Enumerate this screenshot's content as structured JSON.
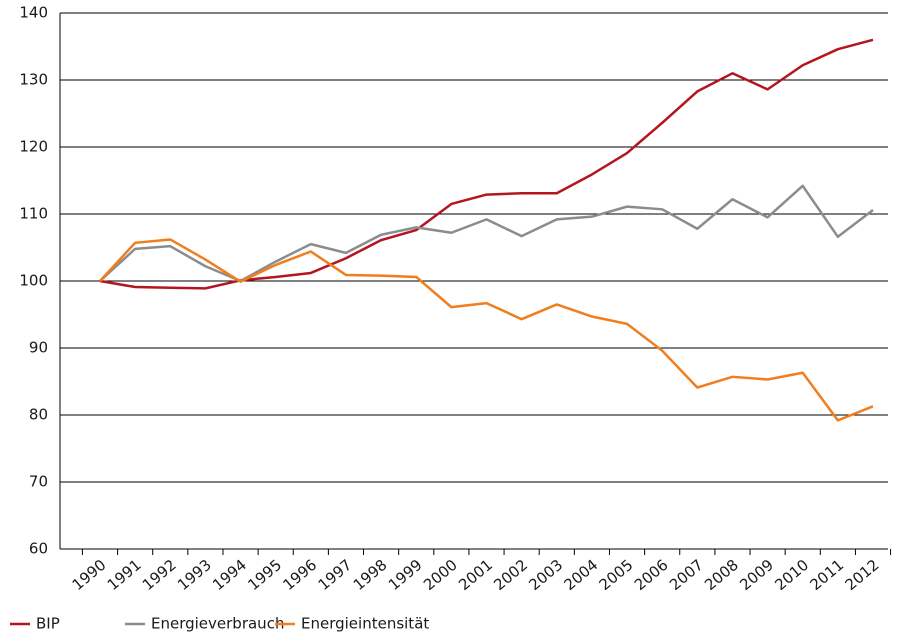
{
  "chart_data": {
    "type": "line",
    "categories": [
      "1990",
      "1991",
      "1992",
      "1993",
      "1994",
      "1995",
      "1996",
      "1997",
      "1998",
      "1999",
      "2000",
      "2001",
      "2002",
      "2003",
      "2004",
      "2005",
      "2006",
      "2007",
      "2008",
      "2009",
      "2010",
      "2011",
      "2012"
    ],
    "series": [
      {
        "name": "BIP",
        "color": "#b3161f",
        "values": [
          100,
          99.1,
          99.0,
          98.9,
          100.1,
          100.6,
          101.2,
          103.4,
          106.1,
          107.6,
          111.5,
          112.9,
          113.1,
          113.1,
          115.9,
          119.1,
          123.6,
          128.3,
          131.0,
          128.6,
          132.2,
          134.6,
          136.0
        ]
      },
      {
        "name": "Energieverbrauch",
        "color": "#8c8c8c",
        "values": [
          100,
          104.8,
          105.2,
          102.2,
          100.0,
          102.9,
          105.5,
          104.2,
          106.9,
          108.0,
          107.2,
          109.2,
          106.7,
          109.2,
          109.6,
          111.1,
          110.7,
          107.8,
          112.2,
          109.5,
          114.2,
          106.6,
          110.6
        ]
      },
      {
        "name": "Energieintensität",
        "color": "#f07d1e",
        "values": [
          100,
          105.7,
          106.2,
          103.2,
          99.9,
          102.4,
          104.4,
          100.9,
          100.8,
          100.6,
          96.1,
          96.7,
          94.3,
          96.5,
          94.7,
          93.6,
          89.6,
          84.1,
          85.7,
          85.3,
          86.3,
          79.2,
          81.3
        ]
      }
    ],
    "ylim": [
      60,
      140
    ],
    "yticks": [
      60,
      70,
      80,
      90,
      100,
      110,
      120,
      130,
      140
    ],
    "grid": true,
    "legend": "bottom-left"
  }
}
